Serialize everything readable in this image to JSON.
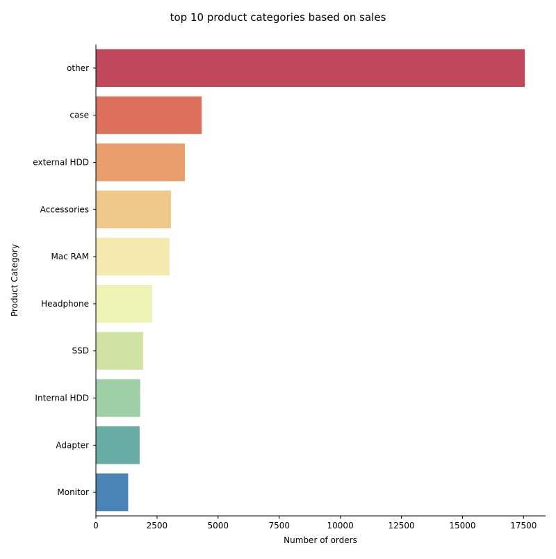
{
  "chart_data": {
    "type": "bar",
    "orientation": "horizontal",
    "title": "top 10 product categories based on sales",
    "xlabel": "Number of orders",
    "ylabel": "Product Category",
    "xlim": [
      0,
      18400
    ],
    "x_ticks": [
      0,
      2500,
      5000,
      7500,
      10000,
      12500,
      15000,
      17500
    ],
    "grid": false,
    "categories": [
      "other",
      "case",
      "external HDD",
      "Accessories",
      "Mac RAM",
      "Headphone",
      "SSD",
      "Internal HDD",
      "Adapter",
      "Monitor"
    ],
    "values": [
      17550,
      4330,
      3640,
      3070,
      3010,
      2300,
      1930,
      1810,
      1790,
      1320
    ],
    "colors": [
      "#c0485a",
      "#dc705a",
      "#e99e6c",
      "#eec98a",
      "#f5e9ae",
      "#ecf3b4",
      "#d1e3a3",
      "#9fcfa7",
      "#67ada4",
      "#4a84b6"
    ]
  }
}
